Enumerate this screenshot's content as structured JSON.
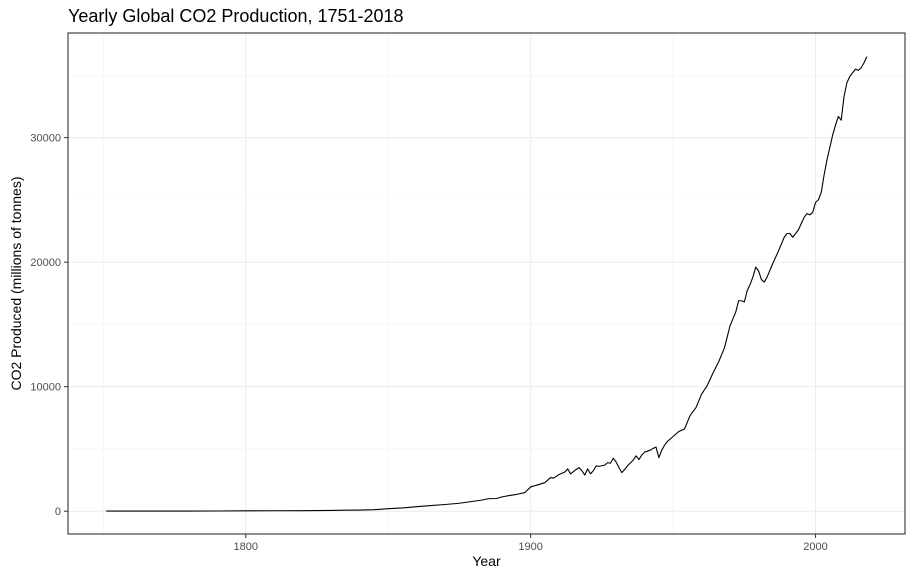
{
  "chart_data": {
    "type": "line",
    "title": "Yearly Global CO2 Production, 1751-2018",
    "xlabel": "Year",
    "ylabel": "CO2 Produced (millions of tonnes)",
    "xlim": [
      1737.6,
      2031.4
    ],
    "ylim": [
      -1830,
      38400
    ],
    "x_ticks": [
      1800,
      1900,
      2000
    ],
    "y_ticks": [
      0,
      10000,
      20000,
      30000
    ],
    "grid": true,
    "legend": "none",
    "line_color": "#000000",
    "series": [
      {
        "x": [
          1751,
          1760,
          1770,
          1780,
          1790,
          1800,
          1810,
          1820,
          1830,
          1835,
          1840,
          1845,
          1850,
          1855,
          1860,
          1865,
          1870,
          1875,
          1880,
          1883,
          1885,
          1888,
          1890,
          1893,
          1895,
          1898,
          1900,
          1903,
          1905,
          1907,
          1908,
          1910,
          1912,
          1913,
          1914,
          1916,
          1917,
          1918,
          1919,
          1920,
          1921,
          1922,
          1923,
          1924,
          1926,
          1927,
          1928,
          1929,
          1930,
          1931,
          1932,
          1933,
          1934,
          1936,
          1937,
          1938,
          1939,
          1940,
          1942,
          1943,
          1944,
          1945,
          1946,
          1947,
          1948,
          1950,
          1952,
          1954,
          1956,
          1958,
          1960,
          1962,
          1964,
          1966,
          1968,
          1970,
          1972,
          1973,
          1974,
          1975,
          1976,
          1977,
          1978,
          1979,
          1980,
          1981,
          1982,
          1983,
          1985,
          1987,
          1989,
          1990,
          1991,
          1992,
          1994,
          1996,
          1997,
          1998,
          1999,
          2000,
          2001,
          2002,
          2003,
          2004,
          2005,
          2006,
          2007,
          2008,
          2009,
          2010,
          2011,
          2012,
          2013,
          2014,
          2015,
          2016,
          2017,
          2018
        ],
        "y": [
          9,
          10,
          11,
          14,
          18,
          28,
          36,
          45,
          60,
          80,
          90,
          120,
          200,
          260,
          360,
          450,
          540,
          640,
          800,
          900,
          1000,
          1020,
          1150,
          1280,
          1350,
          1500,
          1950,
          2150,
          2300,
          2700,
          2650,
          2950,
          3150,
          3400,
          3000,
          3350,
          3500,
          3250,
          2900,
          3400,
          3000,
          3250,
          3650,
          3600,
          3700,
          3900,
          3850,
          4250,
          3950,
          3500,
          3100,
          3350,
          3650,
          4100,
          4450,
          4150,
          4500,
          4750,
          4900,
          5050,
          5150,
          4300,
          4900,
          5300,
          5600,
          6000,
          6400,
          6600,
          7700,
          8300,
          9400,
          10100,
          11100,
          12000,
          13100,
          14900,
          16000,
          16900,
          16900,
          16800,
          17700,
          18200,
          18800,
          19600,
          19300,
          18600,
          18400,
          18800,
          19900,
          20900,
          22000,
          22300,
          22300,
          22000,
          22600,
          23600,
          23900,
          23800,
          24000,
          24800,
          25000,
          25600,
          27000,
          28200,
          29200,
          30200,
          31000,
          31700,
          31400,
          33300,
          34400,
          34900,
          35200,
          35500,
          35400,
          35600,
          36000,
          36500
        ]
      }
    ]
  }
}
